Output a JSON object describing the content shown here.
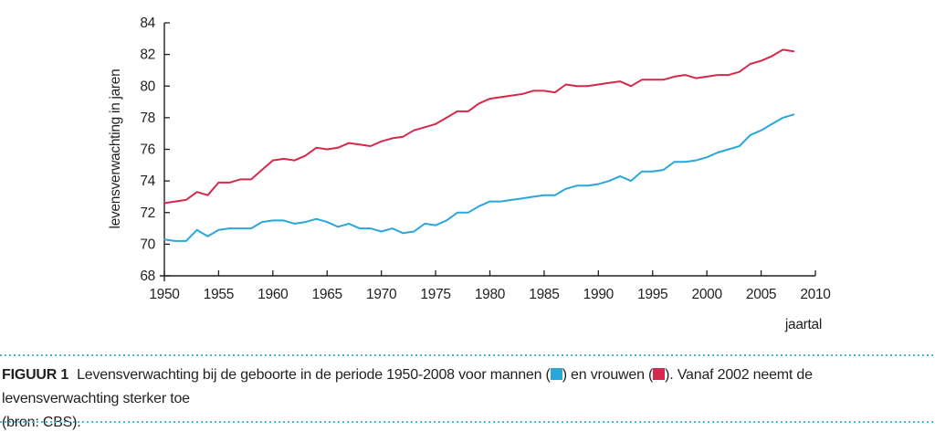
{
  "chart_data": {
    "type": "line",
    "x": [
      1950,
      1951,
      1952,
      1953,
      1954,
      1955,
      1956,
      1957,
      1958,
      1959,
      1960,
      1961,
      1962,
      1963,
      1964,
      1965,
      1966,
      1967,
      1968,
      1969,
      1970,
      1971,
      1972,
      1973,
      1974,
      1975,
      1976,
      1977,
      1978,
      1979,
      1980,
      1981,
      1982,
      1983,
      1984,
      1985,
      1986,
      1987,
      1988,
      1989,
      1990,
      1991,
      1992,
      1993,
      1994,
      1995,
      1996,
      1997,
      1998,
      1999,
      2000,
      2001,
      2002,
      2003,
      2004,
      2005,
      2006,
      2007,
      2008
    ],
    "series": [
      {
        "name": "mannen",
        "color": "#29a7db",
        "values": [
          70.3,
          70.2,
          70.2,
          70.9,
          70.5,
          70.9,
          71.0,
          71.0,
          71.0,
          71.4,
          71.5,
          71.5,
          71.3,
          71.4,
          71.6,
          71.4,
          71.1,
          71.3,
          71.0,
          71.0,
          70.8,
          71.0,
          70.7,
          70.8,
          71.3,
          71.2,
          71.5,
          72.0,
          72.0,
          72.4,
          72.7,
          72.7,
          72.8,
          72.9,
          73.0,
          73.1,
          73.1,
          73.5,
          73.7,
          73.7,
          73.8,
          74.0,
          74.3,
          74.0,
          74.6,
          74.6,
          74.7,
          75.2,
          75.2,
          75.3,
          75.5,
          75.8,
          76.0,
          76.2,
          76.9,
          77.2,
          77.6,
          78.0,
          78.2
        ]
      },
      {
        "name": "vrouwen",
        "color": "#d5294b",
        "values": [
          72.6,
          72.7,
          72.8,
          73.3,
          73.1,
          73.9,
          73.9,
          74.1,
          74.1,
          74.7,
          75.3,
          75.4,
          75.3,
          75.6,
          76.1,
          76.0,
          76.1,
          76.4,
          76.3,
          76.2,
          76.5,
          76.7,
          76.8,
          77.2,
          77.4,
          77.6,
          78.0,
          78.4,
          78.4,
          78.9,
          79.2,
          79.3,
          79.4,
          79.5,
          79.7,
          79.7,
          79.6,
          80.1,
          80.0,
          80.0,
          80.1,
          80.2,
          80.3,
          80.0,
          80.4,
          80.4,
          80.4,
          80.6,
          80.7,
          80.5,
          80.6,
          80.7,
          80.7,
          80.9,
          81.4,
          81.6,
          81.9,
          82.3,
          82.2
        ]
      }
    ],
    "title": "",
    "xlabel": "jaartal",
    "ylabel": "levensverwachting in jaren",
    "xlim": [
      1950,
      2010
    ],
    "ylim": [
      68,
      84
    ],
    "xticks": [
      1950,
      1955,
      1960,
      1965,
      1970,
      1975,
      1980,
      1985,
      1990,
      1995,
      2000,
      2005,
      2010
    ],
    "yticks": [
      68,
      70,
      72,
      74,
      76,
      78,
      80,
      82,
      84
    ],
    "grid": false,
    "axis_color": "#231f20"
  },
  "caption": {
    "label": "FIGUUR 1",
    "part1": "Levensverwachting bij de geboorte in de periode 1950-2008 voor mannen (",
    "part2": ") en vrouwen (",
    "part3": "). Vanaf 2002 neemt de levensverwachting sterker toe",
    "line2": "(bron: CBS).",
    "border_color": "#45b7dc",
    "text_color": "#231f20"
  }
}
